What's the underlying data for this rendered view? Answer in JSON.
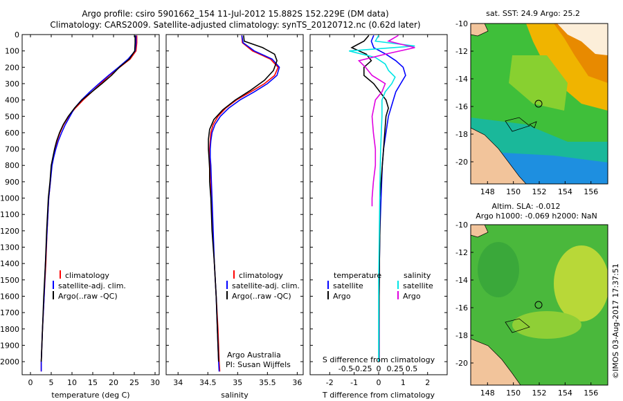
{
  "title_line1": "Argo profile: csiro 5901662_154 11-Jul-2012 15.882S 152.229E (DM data)",
  "title_line2": "Climatology: CARS2009. Satellite-adjusted climatology: synTS_20120712.nc (0.62d later)",
  "timestamp_label": "©IMOS 03-Aug-2017 17:37:51",
  "colors": {
    "climatology": "#ff0000",
    "satellite": "#0000ff",
    "argo": "#000000",
    "sat_salinity": "#00e5e5",
    "argo_salinity": "#e000e0",
    "land": "#f2c49b"
  },
  "depth_ticks": [
    "0",
    "100",
    "200",
    "300",
    "400",
    "500",
    "600",
    "700",
    "800",
    "900",
    "1000",
    "1100",
    "1200",
    "1300",
    "1400",
    "1500",
    "1600",
    "1700",
    "1800",
    "1900",
    "2000"
  ],
  "chart_data": [
    {
      "type": "line",
      "id": "temperature",
      "xlabel": "temperature (deg C)",
      "ylabel": "",
      "xlim": [
        -2,
        31
      ],
      "ylim": [
        2080,
        0
      ],
      "x_ticks": [
        "0",
        "5",
        "10",
        "15",
        "20",
        "25",
        "30"
      ],
      "legend": [
        "climatology",
        "satellite-adj. clim.",
        "Argo(..raw -QC)"
      ],
      "series": [
        {
          "name": "climatology",
          "color": "#ff0000",
          "points": [
            [
              25.6,
              5
            ],
            [
              25.6,
              50
            ],
            [
              25.4,
              100
            ],
            [
              24.0,
              150
            ],
            [
              21.5,
              200
            ],
            [
              19.0,
              250
            ],
            [
              16.9,
              300
            ],
            [
              14.8,
              350
            ],
            [
              12.7,
              400
            ],
            [
              10.8,
              450
            ],
            [
              9.2,
              500
            ],
            [
              8.0,
              550
            ],
            [
              7.1,
              600
            ],
            [
              6.4,
              650
            ],
            [
              5.9,
              700
            ],
            [
              5.5,
              750
            ],
            [
              5.1,
              800
            ],
            [
              4.8,
              900
            ],
            [
              4.4,
              1000
            ],
            [
              4.0,
              1200
            ],
            [
              3.7,
              1400
            ],
            [
              3.3,
              1600
            ],
            [
              2.9,
              1800
            ],
            [
              2.6,
              2000
            ],
            [
              2.6,
              2060
            ]
          ]
        },
        {
          "name": "satellite-adj. clim.",
          "color": "#0000ff",
          "points": [
            [
              25.4,
              5
            ],
            [
              25.4,
              50
            ],
            [
              25.2,
              100
            ],
            [
              23.5,
              150
            ],
            [
              21.2,
              200
            ],
            [
              18.8,
              250
            ],
            [
              16.5,
              300
            ],
            [
              14.3,
              350
            ],
            [
              12.3,
              400
            ],
            [
              10.6,
              450
            ],
            [
              9.5,
              500
            ],
            [
              8.4,
              550
            ],
            [
              7.5,
              600
            ],
            [
              6.7,
              650
            ],
            [
              6.1,
              700
            ],
            [
              5.6,
              750
            ],
            [
              5.2,
              800
            ],
            [
              4.8,
              900
            ],
            [
              4.4,
              1000
            ],
            [
              4.0,
              1200
            ],
            [
              3.6,
              1400
            ],
            [
              3.3,
              1600
            ],
            [
              2.9,
              1800
            ],
            [
              2.6,
              2000
            ],
            [
              2.6,
              2060
            ]
          ]
        },
        {
          "name": "Argo(..raw -QC)",
          "color": "#000000",
          "points": [
            [
              25.2,
              5
            ],
            [
              25.2,
              50
            ],
            [
              25.1,
              100
            ],
            [
              23.8,
              150
            ],
            [
              21.4,
              200
            ],
            [
              19.5,
              250
            ],
            [
              17.2,
              300
            ],
            [
              14.8,
              350
            ],
            [
              12.4,
              400
            ],
            [
              10.6,
              450
            ],
            [
              9.1,
              500
            ],
            [
              7.9,
              550
            ],
            [
              7.0,
              600
            ],
            [
              6.3,
              650
            ],
            [
              5.8,
              700
            ],
            [
              5.4,
              750
            ],
            [
              5.0,
              800
            ],
            [
              4.7,
              900
            ],
            [
              4.3,
              1000
            ],
            [
              3.9,
              1200
            ],
            [
              3.6,
              1400
            ],
            [
              3.2,
              1600
            ],
            [
              2.9,
              1800
            ],
            [
              2.6,
              2000
            ]
          ]
        }
      ]
    },
    {
      "type": "line",
      "id": "salinity",
      "xlabel": "salinity",
      "ylabel": "",
      "xlim": [
        33.8,
        36.1
      ],
      "ylim": [
        2080,
        0
      ],
      "x_ticks": [
        "34",
        "34.5",
        "35",
        "35.5",
        "36"
      ],
      "legend": [
        "climatology",
        "satellite-adj. clim.",
        "Argo(..raw -QC)"
      ],
      "annotations": [
        "Argo Australia",
        "PI: Susan Wijffels"
      ],
      "series": [
        {
          "name": "climatology",
          "color": "#ff0000",
          "points": [
            [
              35.07,
              5
            ],
            [
              35.08,
              50
            ],
            [
              35.25,
              100
            ],
            [
              35.55,
              150
            ],
            [
              35.68,
              200
            ],
            [
              35.62,
              250
            ],
            [
              35.45,
              300
            ],
            [
              35.22,
              350
            ],
            [
              34.98,
              400
            ],
            [
              34.8,
              450
            ],
            [
              34.67,
              500
            ],
            [
              34.59,
              550
            ],
            [
              34.55,
              600
            ],
            [
              34.54,
              650
            ],
            [
              34.53,
              700
            ],
            [
              34.53,
              750
            ],
            [
              34.54,
              800
            ],
            [
              34.55,
              900
            ],
            [
              34.56,
              1000
            ],
            [
              34.58,
              1200
            ],
            [
              34.61,
              1400
            ],
            [
              34.64,
              1600
            ],
            [
              34.67,
              1800
            ],
            [
              34.69,
              2000
            ],
            [
              34.7,
              2060
            ]
          ]
        },
        {
          "name": "satellite-adj. clim.",
          "color": "#0000ff",
          "points": [
            [
              35.07,
              5
            ],
            [
              35.09,
              50
            ],
            [
              35.28,
              100
            ],
            [
              35.58,
              150
            ],
            [
              35.7,
              200
            ],
            [
              35.66,
              250
            ],
            [
              35.5,
              300
            ],
            [
              35.28,
              350
            ],
            [
              35.04,
              400
            ],
            [
              34.85,
              450
            ],
            [
              34.71,
              500
            ],
            [
              34.62,
              550
            ],
            [
              34.57,
              600
            ],
            [
              34.55,
              650
            ],
            [
              34.54,
              700
            ],
            [
              34.54,
              750
            ],
            [
              34.55,
              800
            ],
            [
              34.56,
              900
            ],
            [
              34.57,
              1000
            ],
            [
              34.59,
              1200
            ],
            [
              34.61,
              1400
            ],
            [
              34.64,
              1600
            ],
            [
              34.66,
              1800
            ],
            [
              34.68,
              2000
            ],
            [
              34.69,
              2060
            ]
          ]
        },
        {
          "name": "Argo(..raw -QC)",
          "color": "#000000",
          "points": [
            [
              35.1,
              5
            ],
            [
              35.11,
              40
            ],
            [
              35.42,
              80
            ],
            [
              35.62,
              120
            ],
            [
              35.66,
              160
            ],
            [
              35.6,
              220
            ],
            [
              35.45,
              280
            ],
            [
              35.22,
              340
            ],
            [
              34.96,
              400
            ],
            [
              34.75,
              460
            ],
            [
              34.6,
              520
            ],
            [
              34.53,
              580
            ],
            [
              34.51,
              640
            ],
            [
              34.51,
              700
            ],
            [
              34.52,
              760
            ],
            [
              34.53,
              820
            ],
            [
              34.53,
              900
            ],
            [
              34.55,
              1000
            ],
            [
              34.57,
              1200
            ],
            [
              34.61,
              1400
            ],
            [
              34.64,
              1600
            ],
            [
              34.66,
              1800
            ],
            [
              34.68,
              2000
            ]
          ]
        }
      ]
    },
    {
      "type": "line",
      "id": "differences",
      "xlabel": "T difference from climatology",
      "xlabel_top": "S difference from climatology",
      "xlim": [
        -2.8,
        2.8
      ],
      "ylim": [
        2080,
        0
      ],
      "x_ticks": [
        "-2",
        "-1",
        "0",
        "1",
        "2"
      ],
      "x_ticks_s": [
        "-0.5",
        "-0.25",
        "0",
        "0.25",
        "0.5"
      ],
      "legend": {
        "temperature_header": "temperature",
        "salinity_header": "salinity",
        "satellite": "satellite",
        "argo": "Argo"
      },
      "series": [
        {
          "name": "temperature satellite",
          "color": "#0000ff",
          "points": [
            [
              -0.2,
              5
            ],
            [
              -0.3,
              40
            ],
            [
              -0.2,
              80
            ],
            [
              0.3,
              120
            ],
            [
              0.7,
              160
            ],
            [
              1.0,
              200
            ],
            [
              1.1,
              250
            ],
            [
              0.9,
              300
            ],
            [
              0.7,
              350
            ],
            [
              0.6,
              400
            ],
            [
              0.5,
              450
            ],
            [
              0.4,
              500
            ],
            [
              0.3,
              600
            ],
            [
              0.2,
              700
            ],
            [
              0.15,
              800
            ],
            [
              0.1,
              1000
            ],
            [
              0.05,
              1200
            ],
            [
              0.03,
              1400
            ],
            [
              0.02,
              1600
            ],
            [
              0.02,
              1800
            ],
            [
              0.02,
              2000
            ]
          ]
        },
        {
          "name": "temperature Argo",
          "color": "#000000",
          "points": [
            [
              -0.4,
              5
            ],
            [
              -0.6,
              40
            ],
            [
              -1.1,
              80
            ],
            [
              -0.5,
              120
            ],
            [
              -0.3,
              160
            ],
            [
              -0.6,
              200
            ],
            [
              -0.6,
              250
            ],
            [
              -0.2,
              300
            ],
            [
              0.05,
              350
            ],
            [
              0.3,
              400
            ],
            [
              0.4,
              450
            ],
            [
              0.3,
              500
            ],
            [
              0.25,
              600
            ],
            [
              0.2,
              700
            ],
            [
              0.15,
              800
            ],
            [
              0.1,
              900
            ],
            [
              0.05,
              1000
            ],
            [
              0.05,
              1200
            ],
            [
              0.03,
              1400
            ],
            [
              0.02,
              1600
            ],
            [
              0.01,
              1800
            ],
            [
              0.01,
              2000
            ]
          ]
        },
        {
          "name": "salinity satellite",
          "color": "#00e5e5",
          "points": [
            [
              0.0,
              5
            ],
            [
              -0.05,
              40
            ],
            [
              0.55,
              70
            ],
            [
              -0.45,
              100
            ],
            [
              -0.05,
              140
            ],
            [
              0.1,
              180
            ],
            [
              0.15,
              220
            ],
            [
              0.25,
              260
            ],
            [
              0.2,
              300
            ],
            [
              0.1,
              350
            ],
            [
              0.05,
              400
            ],
            [
              0.05,
              500
            ],
            [
              0.03,
              700
            ],
            [
              0.02,
              900
            ],
            [
              0.01,
              1200
            ],
            [
              0.0,
              1500
            ],
            [
              0.0,
              2000
            ]
          ]
        },
        {
          "name": "salinity Argo",
          "color": "#e000e0",
          "points": [
            [
              0.3,
              5
            ],
            [
              0.15,
              40
            ],
            [
              0.55,
              80
            ],
            [
              0.1,
              120
            ],
            [
              -0.3,
              160
            ],
            [
              -0.2,
              200
            ],
            [
              -0.1,
              250
            ],
            [
              0.1,
              300
            ],
            [
              0.05,
              350
            ],
            [
              -0.05,
              400
            ],
            [
              -0.1,
              500
            ],
            [
              -0.08,
              600
            ],
            [
              -0.05,
              700
            ],
            [
              -0.05,
              800
            ],
            [
              -0.08,
              900
            ],
            [
              -0.1,
              1000
            ],
            [
              -0.1,
              1050
            ]
          ]
        }
      ]
    }
  ],
  "maps": [
    {
      "title": "sat. SST: 24.9 Argo: 25.2",
      "x_ticks": [
        "148",
        "150",
        "152",
        "154",
        "156"
      ],
      "y_ticks": [
        "-10",
        "-12",
        "-14",
        "-16",
        "-18",
        "-20"
      ]
    },
    {
      "title_line1": "Altim. SLA: -0.012",
      "title_line2": "Argo h1000: -0.069 h2000: NaN",
      "x_ticks": [
        "148",
        "150",
        "152",
        "154",
        "156"
      ],
      "y_ticks": [
        "-10",
        "-12",
        "-14",
        "-16",
        "-18",
        "-20"
      ]
    }
  ]
}
